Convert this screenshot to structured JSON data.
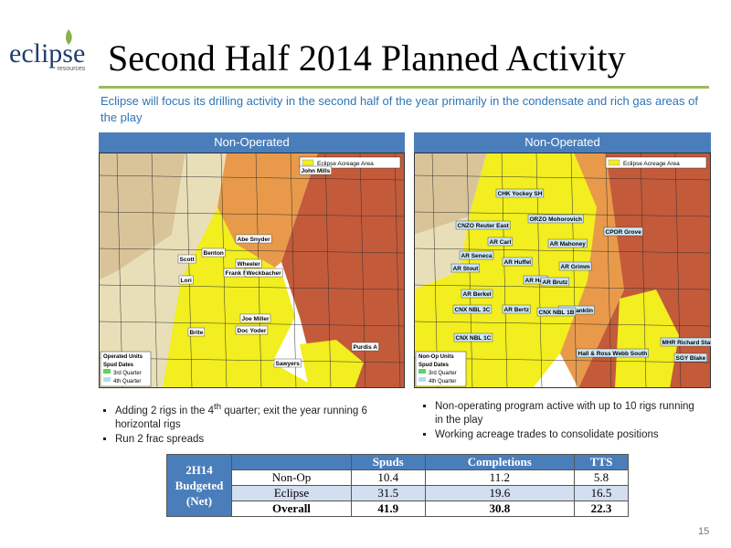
{
  "logo": {
    "name": "eclipse",
    "tagline": "resources"
  },
  "title": "Second Half 2014 Planned Activity",
  "subtitle": "Eclipse will focus its drilling activity in the second half of the year primarily in the condensate and rich gas areas of the play",
  "panels": [
    {
      "header": "Non-Operated",
      "acreage_legend": "Eclipse Acreage Area",
      "map_labels": [
        "John Mills",
        "Abe Snyder",
        "Benton",
        "Scott",
        "Wheeler",
        "Frank Miller",
        "Weckbacher",
        "Lori",
        "Joe Miller",
        "Doc Yoder",
        "Brite",
        "Sawyers",
        "Purdis A"
      ],
      "legend": [
        "Operated Units",
        "Spud Dates",
        "3rd Quarter",
        "4th Quarter"
      ],
      "bullets": [
        [
          "Adding 2 rigs in the 4",
          "th",
          " quarter; exit the year running 6 horizontal rigs"
        ],
        [
          "Run 2 frac spreads"
        ]
      ]
    },
    {
      "header": "Non-Operated",
      "acreage_legend": "Eclipse Acreage Area",
      "map_labels": [
        "CHK Yockey SH",
        "ORZO Mohorovich",
        "CNZO Reuter East",
        "AR Carl",
        "AR Mahoney",
        "CPOR Grove",
        "AR Seneca",
        "AR Huffel",
        "AR Stout",
        "AR Grimm",
        "AR Hall",
        "AR Brutz",
        "AR Berkel",
        "AR Bertz",
        "AR Franklin",
        "CNX NBL 3C",
        "CNX NBL 1B",
        "CNX NBL 1C",
        "Hall & Ross Webb South",
        "MHR Richard Stalder A",
        "SGY Blake"
      ],
      "legend": [
        "Non-Op Units",
        "Spud Dates",
        "3rd Quarter",
        "4th Quarter"
      ],
      "bullets": [
        [
          "Non-operating program active with up to 10 rigs running in the play"
        ],
        [
          "Working acreage trades to consolidate positions"
        ]
      ]
    }
  ],
  "table": {
    "corner": [
      "2H14",
      "Budgeted",
      "(Net)"
    ],
    "columns": [
      "Spuds",
      "Completions",
      "TTS"
    ],
    "rows": [
      {
        "label": "Non-Op",
        "values": [
          10.4,
          11.2,
          5.8
        ]
      },
      {
        "label": "Eclipse",
        "values": [
          31.5,
          19.6,
          16.5
        ]
      },
      {
        "label": "Overall",
        "values": [
          41.9,
          30.8,
          22.3
        ]
      }
    ]
  },
  "page_number": 15
}
